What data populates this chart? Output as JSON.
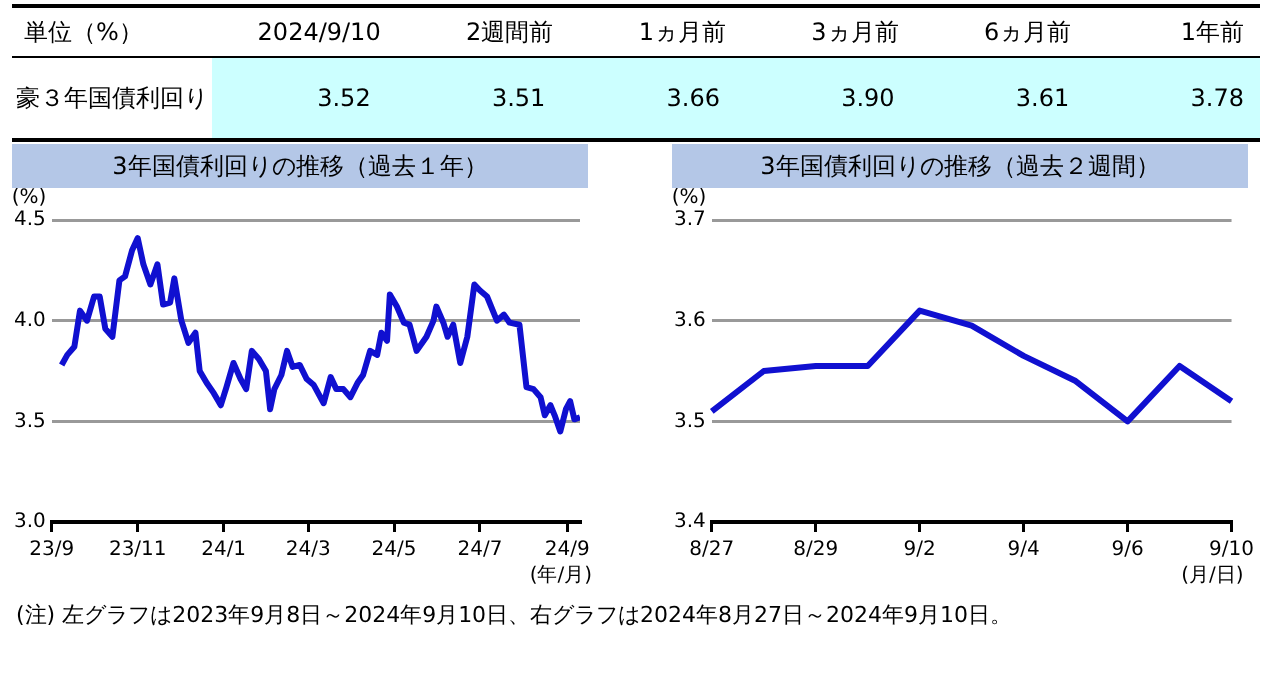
{
  "chart_data": [
    {
      "type": "other",
      "title": "単位（%）",
      "categories": [
        "2024/9/10",
        "2週間前",
        "1ヵ月前",
        "3ヵ月前",
        "6ヵ月前",
        "1年前"
      ],
      "series": [
        {
          "name": "豪３年国債利回り",
          "color": "#ccffff",
          "values": [
            3.52,
            3.51,
            3.66,
            3.9,
            3.61,
            3.78
          ],
          "value_labels": [
            "3.52",
            "3.51",
            "3.66",
            "3.90",
            "3.61",
            "3.78"
          ]
        }
      ]
    },
    {
      "type": "line",
      "title": "3年国債利回りの推移（過去１年）",
      "xlabel": "(年/月)",
      "ylabel": "(%)",
      "x": [
        "2023-09-08",
        "2023-09-12",
        "2023-09-17",
        "2023-09-21",
        "2023-09-26",
        "2023-10-01",
        "2023-10-05",
        "2023-10-09",
        "2023-10-14",
        "2023-10-19",
        "2023-10-23",
        "2023-10-28",
        "2023-11-01",
        "2023-11-05",
        "2023-11-10",
        "2023-11-15",
        "2023-11-19",
        "2023-11-24",
        "2023-11-27",
        "2023-12-02",
        "2023-12-07",
        "2023-12-12",
        "2023-12-15",
        "2023-12-20",
        "2023-12-25",
        "2023-12-30",
        "2024-01-03",
        "2024-01-08",
        "2024-01-13",
        "2024-01-17",
        "2024-01-21",
        "2024-01-26",
        "2024-01-31",
        "2024-02-03",
        "2024-02-06",
        "2024-02-11",
        "2024-02-15",
        "2024-02-19",
        "2024-02-24",
        "2024-02-29",
        "2024-03-05",
        "2024-03-12",
        "2024-03-17",
        "2024-03-21",
        "2024-03-26",
        "2024-03-31",
        "2024-04-05",
        "2024-04-09",
        "2024-04-14",
        "2024-04-19",
        "2024-04-22",
        "2024-04-26",
        "2024-04-28",
        "2024-05-03",
        "2024-05-08",
        "2024-05-12",
        "2024-05-17",
        "2024-05-24",
        "2024-05-29",
        "2024-05-31",
        "2024-06-05",
        "2024-06-08",
        "2024-06-12",
        "2024-06-17",
        "2024-06-22",
        "2024-06-27",
        "2024-07-01",
        "2024-07-06",
        "2024-07-13",
        "2024-07-18",
        "2024-07-22",
        "2024-07-29",
        "2024-08-03",
        "2024-08-08",
        "2024-08-13",
        "2024-08-16",
        "2024-08-20",
        "2024-08-23",
        "2024-08-27",
        "2024-08-31",
        "2024-09-03",
        "2024-09-06",
        "2024-09-10"
      ],
      "series": [
        {
          "color": "#1010d0",
          "values": [
            3.78,
            3.83,
            3.87,
            4.05,
            4.0,
            4.12,
            4.12,
            3.96,
            3.92,
            4.2,
            4.22,
            4.35,
            4.41,
            4.28,
            4.18,
            4.28,
            4.08,
            4.09,
            4.21,
            4.0,
            3.89,
            3.94,
            3.75,
            3.69,
            3.64,
            3.58,
            3.67,
            3.79,
            3.71,
            3.66,
            3.85,
            3.81,
            3.75,
            3.56,
            3.66,
            3.73,
            3.85,
            3.77,
            3.78,
            3.71,
            3.68,
            3.59,
            3.72,
            3.66,
            3.66,
            3.62,
            3.69,
            3.73,
            3.85,
            3.83,
            3.94,
            3.9,
            4.13,
            4.07,
            3.99,
            3.98,
            3.85,
            3.92,
            4.0,
            4.07,
            3.99,
            3.92,
            3.98,
            3.79,
            3.92,
            4.18,
            4.15,
            4.12,
            4.0,
            4.03,
            3.99,
            3.98,
            3.67,
            3.66,
            3.62,
            3.53,
            3.58,
            3.53,
            3.45,
            3.56,
            3.6,
            3.51,
            3.52
          ]
        }
      ],
      "xlim": [
        "2023-09-01",
        "2024-09-10"
      ],
      "xticks": [
        {
          "value": "2023-09-01",
          "label": "23/9"
        },
        {
          "value": "2023-11-01",
          "label": "23/11"
        },
        {
          "value": "2024-01-01",
          "label": "24/1"
        },
        {
          "value": "2024-03-01",
          "label": "24/3"
        },
        {
          "value": "2024-05-01",
          "label": "24/5"
        },
        {
          "value": "2024-07-01",
          "label": "24/7"
        },
        {
          "value": "2024-09-01",
          "label": "24/9"
        }
      ],
      "ylim": [
        3.0,
        4.5
      ],
      "yticks": [
        {
          "value": 3,
          "label": "3.0"
        },
        3.5,
        {
          "value": 4,
          "label": "4.0"
        },
        4.5
      ],
      "grid": "y",
      "marker": "none",
      "legend": false
    },
    {
      "type": "line",
      "title": "3年国債利回りの推移（過去２週間）",
      "xlabel": "(月/日)",
      "ylabel": "(%)",
      "categories": [
        "8/27",
        null,
        "8/29",
        null,
        "9/2",
        null,
        "9/4",
        null,
        "9/6",
        null,
        "9/10"
      ],
      "series": [
        {
          "color": "#1010d0",
          "values": [
            3.51,
            3.55,
            3.555,
            3.555,
            3.61,
            3.595,
            3.565,
            3.54,
            3.5,
            3.555,
            3.52
          ]
        }
      ],
      "ylim": [
        3.4,
        3.7
      ],
      "yticks": [
        3.4,
        3.5,
        3.6,
        3.7
      ],
      "grid": "y",
      "marker": "none",
      "legend": false,
      "annotations": [
        "(注) 左グラフは2023年9月8日～2024年9月10日、右グラフは2024年8月27日～2024年9月10日。"
      ]
    }
  ]
}
